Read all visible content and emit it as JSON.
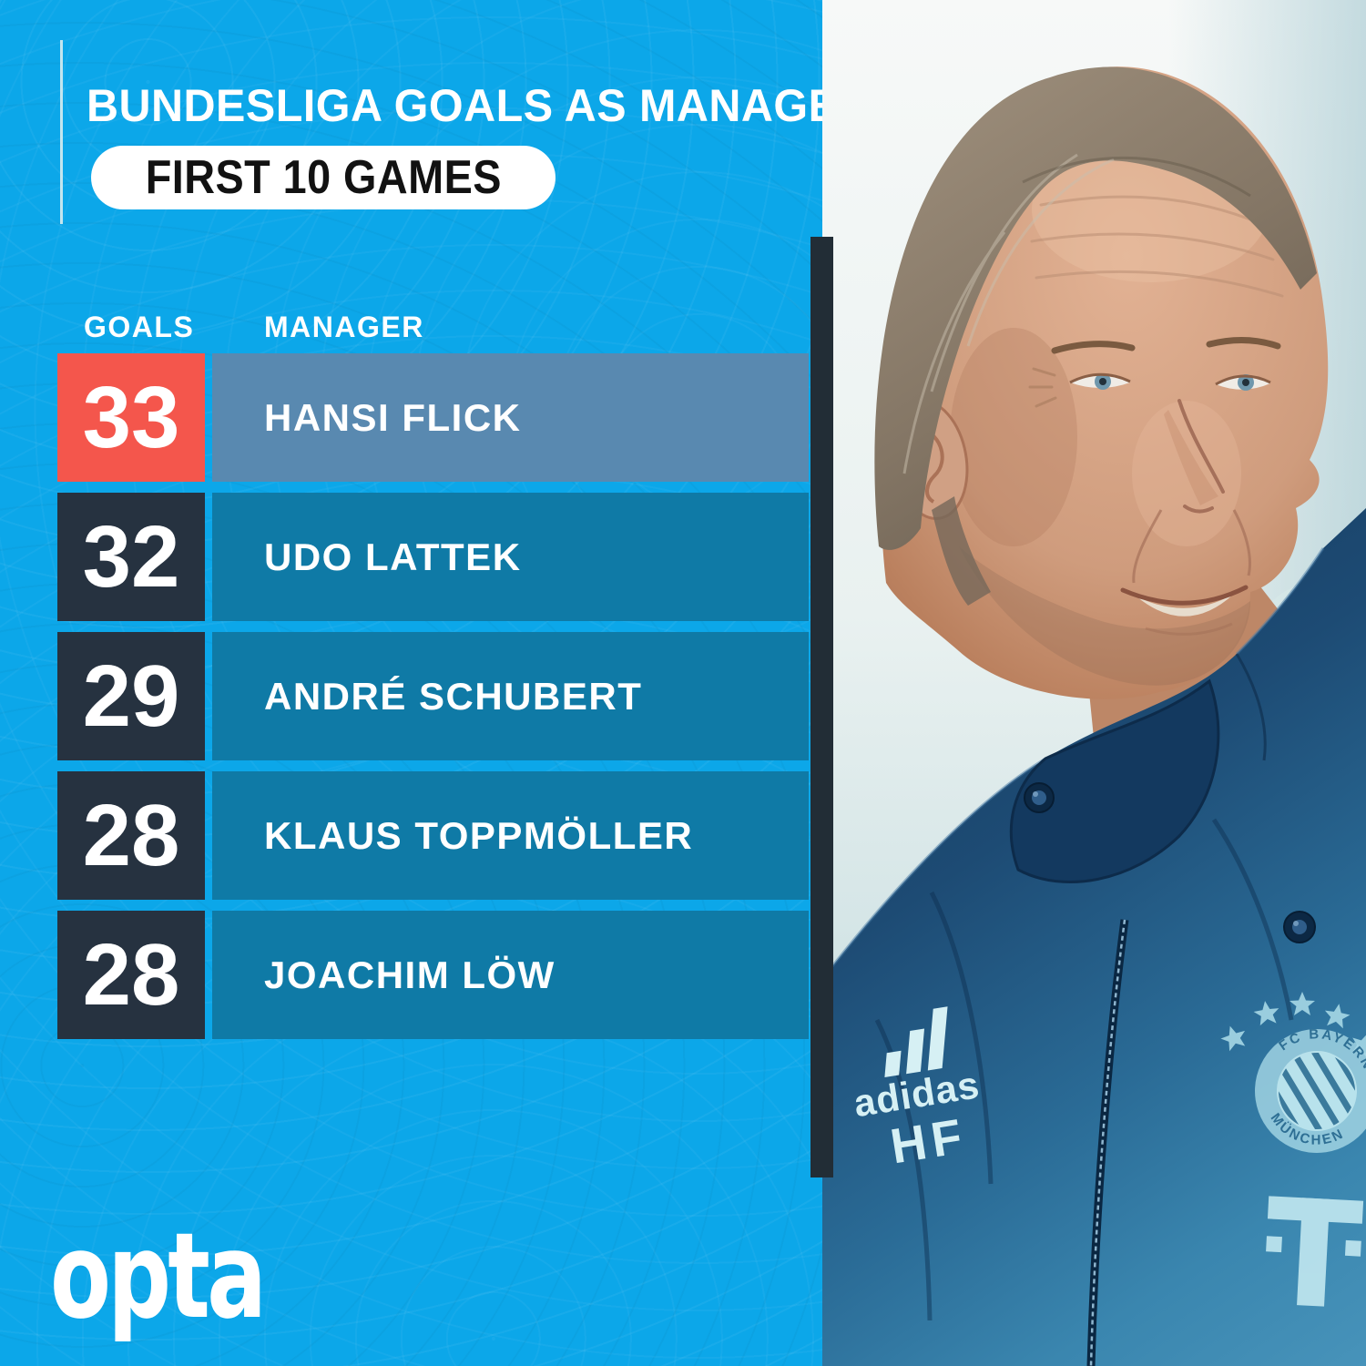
{
  "header": {
    "title": "BUNDESLIGA GOALS AS MANAGER",
    "subtitle": "FIRST 10 GAMES"
  },
  "table": {
    "goals_header": "GOALS",
    "manager_header": "MANAGER",
    "rows": [
      {
        "goals": "33",
        "manager": "HANSI FLICK",
        "highlight": true
      },
      {
        "goals": "32",
        "manager": "UDO LATTEK",
        "highlight": false
      },
      {
        "goals": "29",
        "manager": "ANDRÉ SCHUBERT",
        "highlight": false
      },
      {
        "goals": "28",
        "manager": "KLAUS TOPPMÖLLER",
        "highlight": false
      },
      {
        "goals": "28",
        "manager": "JOACHIM LÖW",
        "highlight": false
      }
    ]
  },
  "branding": {
    "logo_text": "opta"
  },
  "photo": {
    "alt": "Hansi Flick smiling in a navy adidas Bayern Munich training jacket",
    "adidas_label": "adidas",
    "initials": "HF",
    "crest_top": "FC BAYERN",
    "crest_bottom": "MÜNCHEN"
  },
  "chart_data": {
    "type": "table",
    "title": "Bundesliga Goals as Manager",
    "subtitle": "First 10 Games",
    "columns": [
      "Goals",
      "Manager"
    ],
    "rows": [
      [
        33,
        "Hansi Flick"
      ],
      [
        32,
        "Udo Lattek"
      ],
      [
        29,
        "André Schubert"
      ],
      [
        28,
        "Klaus Toppmöller"
      ],
      [
        28,
        "Joachim Löw"
      ]
    ],
    "highlighted_row": "Hansi Flick"
  },
  "colors": {
    "background": "#0ca7e9",
    "row-bar": "#0f7aa6",
    "number-box": "#263240",
    "highlight-red": "#f4564c",
    "highlight-bar": "#5989b0",
    "stripe": "#222d36",
    "text-white": "#ffffff",
    "pill-bg": "#ffffff",
    "pill-text": "#121212"
  }
}
